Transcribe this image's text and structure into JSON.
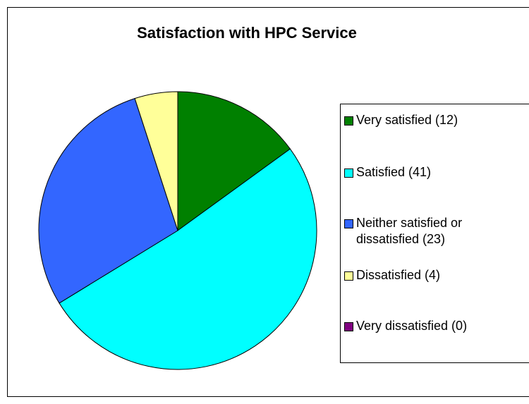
{
  "chart_data": {
    "type": "pie",
    "title": "Satisfaction with HPC Service",
    "categories": [
      "Very satisfied (12)",
      "Satisfied (41)",
      "Neither satisfied or dissatisfied (23)",
      "Dissatisfied (4)",
      "Very dissatisfied (0)"
    ],
    "values": [
      12,
      41,
      23,
      4,
      0
    ],
    "colors": [
      "#008000",
      "#00ffff",
      "#3366ff",
      "#ffff99",
      "#800080"
    ],
    "legend": "right"
  }
}
